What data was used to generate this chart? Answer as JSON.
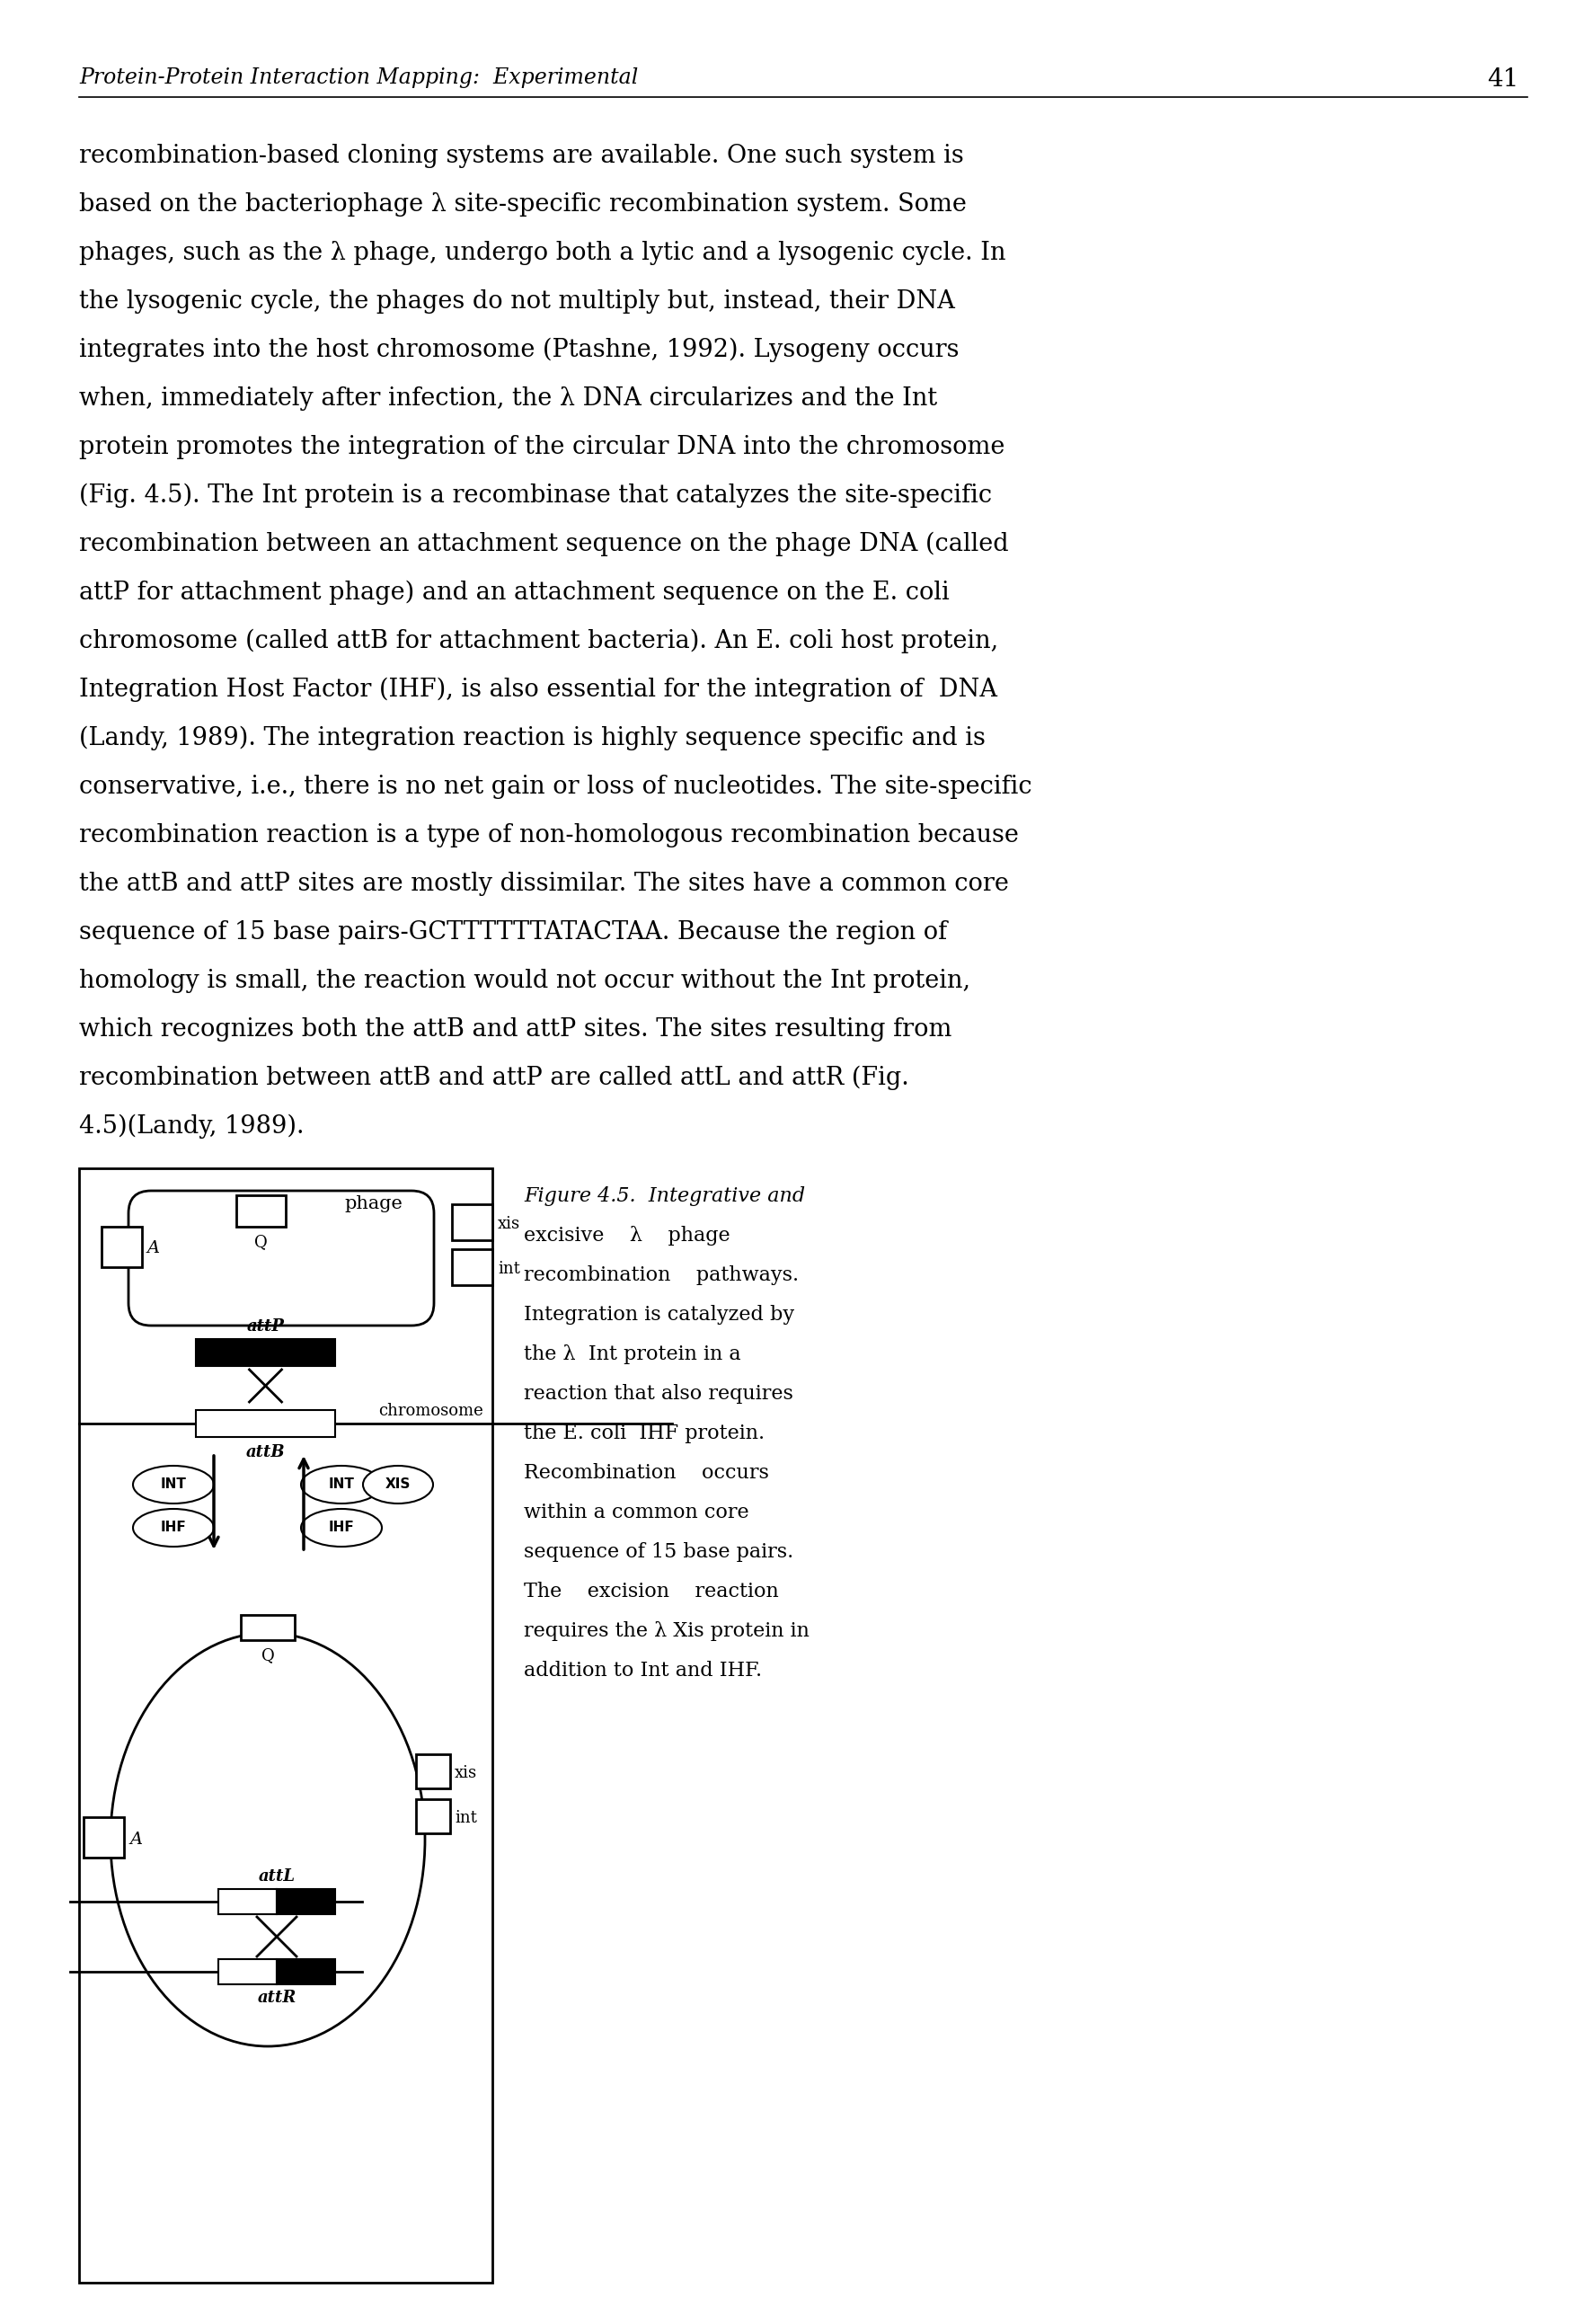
{
  "page_header_italic": "Protein-Protein Interaction Mapping:  Experimental",
  "page_number": "41",
  "body_text_lines": [
    "recombination-based cloning systems are available. One such system is",
    "based on the bacteriophage λ site-specific recombination system. Some",
    "phages, such as the λ phage, undergo both a lytic and a lysogenic cycle. In",
    "the lysogenic cycle, the phages do not multiply but, instead, their DNA",
    "integrates into the host chromosome (Ptashne, 1992). Lysogeny occurs",
    "when, immediately after infection, the λ DNA circularizes and the Int",
    "protein promotes the integration of the circular DNA into the chromosome",
    "(Fig. 4.5). The Int protein is a recombinase that catalyzes the site-specific",
    "recombination between an attachment sequence on the phage DNA (called",
    "attP for attachment phage) and an attachment sequence on the E. coli",
    "chromosome (called attB for attachment bacteria). An E. coli host protein,",
    "Integration Host Factor (IHF), is also essential for the integration of  DNA",
    "(Landy, 1989). The integration reaction is highly sequence specific and is",
    "conservative, i.e., there is no net gain or loss of nucleotides. The site-specific",
    "recombination reaction is a type of non-homologous recombination because",
    "the attB and attP sites are mostly dissimilar. The sites have a common core",
    "sequence of 15 base pairs-GCTTTTTTATACTAA. Because the region of",
    "homology is small, the reaction would not occur without the Int protein,",
    "which recognizes both the attB and attP sites. The sites resulting from",
    "recombination between attB and attP are called attL and attR (Fig.",
    "4.5)(Landy, 1989)."
  ],
  "caption_lines": [
    "Figure 4.5.  Integrative and",
    "excisive    λ    phage",
    "recombination    pathways.",
    "Integration is catalyzed by",
    "the λ  Int protein in a",
    "reaction that also requires",
    "the E. coli  IHF protein.",
    "Recombination    occurs",
    "within a common core",
    "sequence of 15 base pairs.",
    "The    excision    reaction",
    "requires the λ Xis protein in",
    "addition to Int and IHF."
  ],
  "background_color": "#ffffff",
  "text_color": "#000000"
}
